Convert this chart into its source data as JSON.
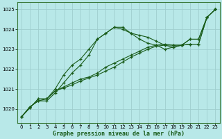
{
  "x": [
    0,
    1,
    2,
    3,
    4,
    5,
    6,
    7,
    8,
    9,
    10,
    11,
    12,
    13,
    14,
    15,
    16,
    17,
    18,
    19,
    20,
    21,
    22,
    23
  ],
  "series_bell": [
    1019.6,
    1020.1,
    1020.4,
    1020.4,
    1020.8,
    1021.3,
    1021.8,
    1022.2,
    1022.7,
    1023.5,
    1023.8,
    1024.1,
    1024.1,
    1023.8,
    1023.7,
    1023.6,
    1023.4,
    1023.2,
    1023.1,
    1023.2,
    1023.5,
    1023.5,
    1024.6,
    1025.0
  ],
  "series_steep": [
    1019.6,
    1020.1,
    1020.4,
    1020.5,
    1021.0,
    1021.7,
    1022.2,
    1022.5,
    1023.0,
    1023.5,
    1023.8,
    1024.1,
    1024.0,
    1023.8,
    1023.5,
    1023.3,
    1023.2,
    1023.0,
    1023.1,
    1023.2,
    1023.5,
    1023.5,
    1024.6,
    1025.0
  ],
  "series_linear1": [
    1019.6,
    1020.05,
    1020.5,
    1020.5,
    1020.9,
    1021.1,
    1021.3,
    1021.5,
    1021.6,
    1021.8,
    1022.1,
    1022.3,
    1022.5,
    1022.7,
    1022.9,
    1023.1,
    1023.2,
    1023.25,
    1023.2,
    1023.2,
    1023.25,
    1023.25,
    1024.6,
    1025.0
  ],
  "series_linear2": [
    1019.6,
    1020.05,
    1020.5,
    1020.5,
    1020.9,
    1021.05,
    1021.2,
    1021.4,
    1021.55,
    1021.7,
    1021.9,
    1022.1,
    1022.35,
    1022.6,
    1022.8,
    1023.0,
    1023.15,
    1023.2,
    1023.2,
    1023.2,
    1023.25,
    1023.25,
    1024.6,
    1025.0
  ],
  "line_color": "#1a5c1a",
  "bg_color": "#b8e8e8",
  "grid_color": "#a0cece",
  "xlabel": "Graphe pression niveau de la mer (hPa)",
  "yticks": [
    1020,
    1021,
    1022,
    1023,
    1024,
    1025
  ],
  "xticks": [
    0,
    1,
    2,
    3,
    4,
    5,
    6,
    7,
    8,
    9,
    10,
    11,
    12,
    13,
    14,
    15,
    16,
    17,
    18,
    19,
    20,
    21,
    22,
    23
  ],
  "ylim": [
    1019.3,
    1025.35
  ],
  "xlim": [
    -0.5,
    23.5
  ]
}
